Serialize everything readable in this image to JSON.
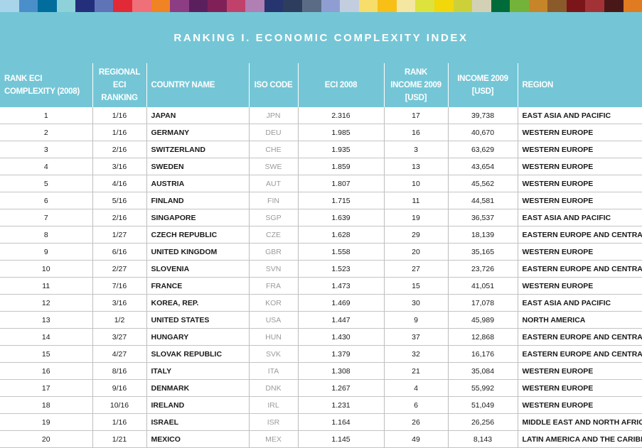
{
  "color_strip": [
    "#a9d5ea",
    "#4b8fca",
    "#006d9c",
    "#8fd1d8",
    "#232f7b",
    "#5e74b7",
    "#e12a35",
    "#ef7079",
    "#f08424",
    "#8c3d83",
    "#5c1f5d",
    "#7f2158",
    "#c0426a",
    "#b07fb3",
    "#263470",
    "#2c3d5e",
    "#5a6c85",
    "#8f9ed2",
    "#c2cee0",
    "#f7dd6a",
    "#f8bf16",
    "#f5e6a2",
    "#dde23c",
    "#f2d70b",
    "#ccd13a",
    "#d3d1b5",
    "#006b3a",
    "#74b33a",
    "#c7852a",
    "#8b5a2b",
    "#7b1519",
    "#a33236",
    "#4a1719",
    "#e07b22"
  ],
  "title": "RANKING I. ECONOMIC COMPLEXITY INDEX",
  "headers": {
    "rank": "RANK ECI COMPLEXITY (2008)",
    "regional": "REGIONAL ECI RANKING",
    "country": "COUNTRY NAME",
    "iso": "ISO CODE",
    "eci": "ECI 2008",
    "rank_income": "RANK INCOME 2009 [USD]",
    "income": "INCOME 2009 [USD]",
    "region": "REGION"
  },
  "rows": [
    {
      "rank": 1,
      "regional": "1/16",
      "country": "JAPAN",
      "iso": "JPN",
      "eci": "2.316",
      "rank_income": 17,
      "income": 39738,
      "region": "EAST ASIA AND PACIFIC"
    },
    {
      "rank": 2,
      "regional": "1/16",
      "country": "GERMANY",
      "iso": "DEU",
      "eci": "1.985",
      "rank_income": 16,
      "income": 40670,
      "region": "WESTERN EUROPE"
    },
    {
      "rank": 3,
      "regional": "2/16",
      "country": "SWITZERLAND",
      "iso": "CHE",
      "eci": "1.935",
      "rank_income": 3,
      "income": 63629,
      "region": "WESTERN EUROPE"
    },
    {
      "rank": 4,
      "regional": "3/16",
      "country": "SWEDEN",
      "iso": "SWE",
      "eci": "1.859",
      "rank_income": 13,
      "income": 43654,
      "region": "WESTERN EUROPE"
    },
    {
      "rank": 5,
      "regional": "4/16",
      "country": "AUSTRIA",
      "iso": "AUT",
      "eci": "1.807",
      "rank_income": 10,
      "income": 45562,
      "region": "WESTERN EUROPE"
    },
    {
      "rank": 6,
      "regional": "5/16",
      "country": "FINLAND",
      "iso": "FIN",
      "eci": "1.715",
      "rank_income": 11,
      "income": 44581,
      "region": "WESTERN EUROPE"
    },
    {
      "rank": 7,
      "regional": "2/16",
      "country": "SINGAPORE",
      "iso": "SGP",
      "eci": "1.639",
      "rank_income": 19,
      "income": 36537,
      "region": "EAST ASIA AND PACIFIC"
    },
    {
      "rank": 8,
      "regional": "1/27",
      "country": "CZECH REPUBLIC",
      "iso": "CZE",
      "eci": "1.628",
      "rank_income": 29,
      "income": 18139,
      "region": "EASTERN EUROPE AND CENTRAL ASIA"
    },
    {
      "rank": 9,
      "regional": "6/16",
      "country": "UNITED KINGDOM",
      "iso": "GBR",
      "eci": "1.558",
      "rank_income": 20,
      "income": 35165,
      "region": "WESTERN EUROPE"
    },
    {
      "rank": 10,
      "regional": "2/27",
      "country": "SLOVENIA",
      "iso": "SVN",
      "eci": "1.523",
      "rank_income": 27,
      "income": 23726,
      "region": "EASTERN EUROPE AND CENTRAL ASIA"
    },
    {
      "rank": 11,
      "regional": "7/16",
      "country": "FRANCE",
      "iso": "FRA",
      "eci": "1.473",
      "rank_income": 15,
      "income": 41051,
      "region": "WESTERN EUROPE"
    },
    {
      "rank": 12,
      "regional": "3/16",
      "country": "KOREA, REP.",
      "iso": "KOR",
      "eci": "1.469",
      "rank_income": 30,
      "income": 17078,
      "region": "EAST ASIA AND PACIFIC"
    },
    {
      "rank": 13,
      "regional": "1/2",
      "country": "UNITED STATES",
      "iso": "USA",
      "eci": "1.447",
      "rank_income": 9,
      "income": 45989,
      "region": "NORTH AMERICA"
    },
    {
      "rank": 14,
      "regional": "3/27",
      "country": "HUNGARY",
      "iso": "HUN",
      "eci": "1.430",
      "rank_income": 37,
      "income": 12868,
      "region": "EASTERN EUROPE AND CENTRAL ASIA"
    },
    {
      "rank": 15,
      "regional": "4/27",
      "country": "SLOVAK REPUBLIC",
      "iso": "SVK",
      "eci": "1.379",
      "rank_income": 32,
      "income": 16176,
      "region": "EASTERN EUROPE AND CENTRAL ASIA"
    },
    {
      "rank": 16,
      "regional": "8/16",
      "country": "ITALY",
      "iso": "ITA",
      "eci": "1.308",
      "rank_income": 21,
      "income": 35084,
      "region": "WESTERN EUROPE"
    },
    {
      "rank": 17,
      "regional": "9/16",
      "country": "DENMARK",
      "iso": "DNK",
      "eci": "1.267",
      "rank_income": 4,
      "income": 55992,
      "region": "WESTERN EUROPE"
    },
    {
      "rank": 18,
      "regional": "10/16",
      "country": "IRELAND",
      "iso": "IRL",
      "eci": "1.231",
      "rank_income": 6,
      "income": 51049,
      "region": "WESTERN EUROPE"
    },
    {
      "rank": 19,
      "regional": "1/16",
      "country": "ISRAEL",
      "iso": "ISR",
      "eci": "1.164",
      "rank_income": 26,
      "income": 26256,
      "region": "MIDDLE EAST AND NORTH AFRICA"
    },
    {
      "rank": 20,
      "regional": "1/21",
      "country": "MEXICO",
      "iso": "MEX",
      "eci": "1.145",
      "rank_income": 49,
      "income": 8143,
      "region": "LATIN AMERICA AND THE CARIBBEAN"
    }
  ]
}
